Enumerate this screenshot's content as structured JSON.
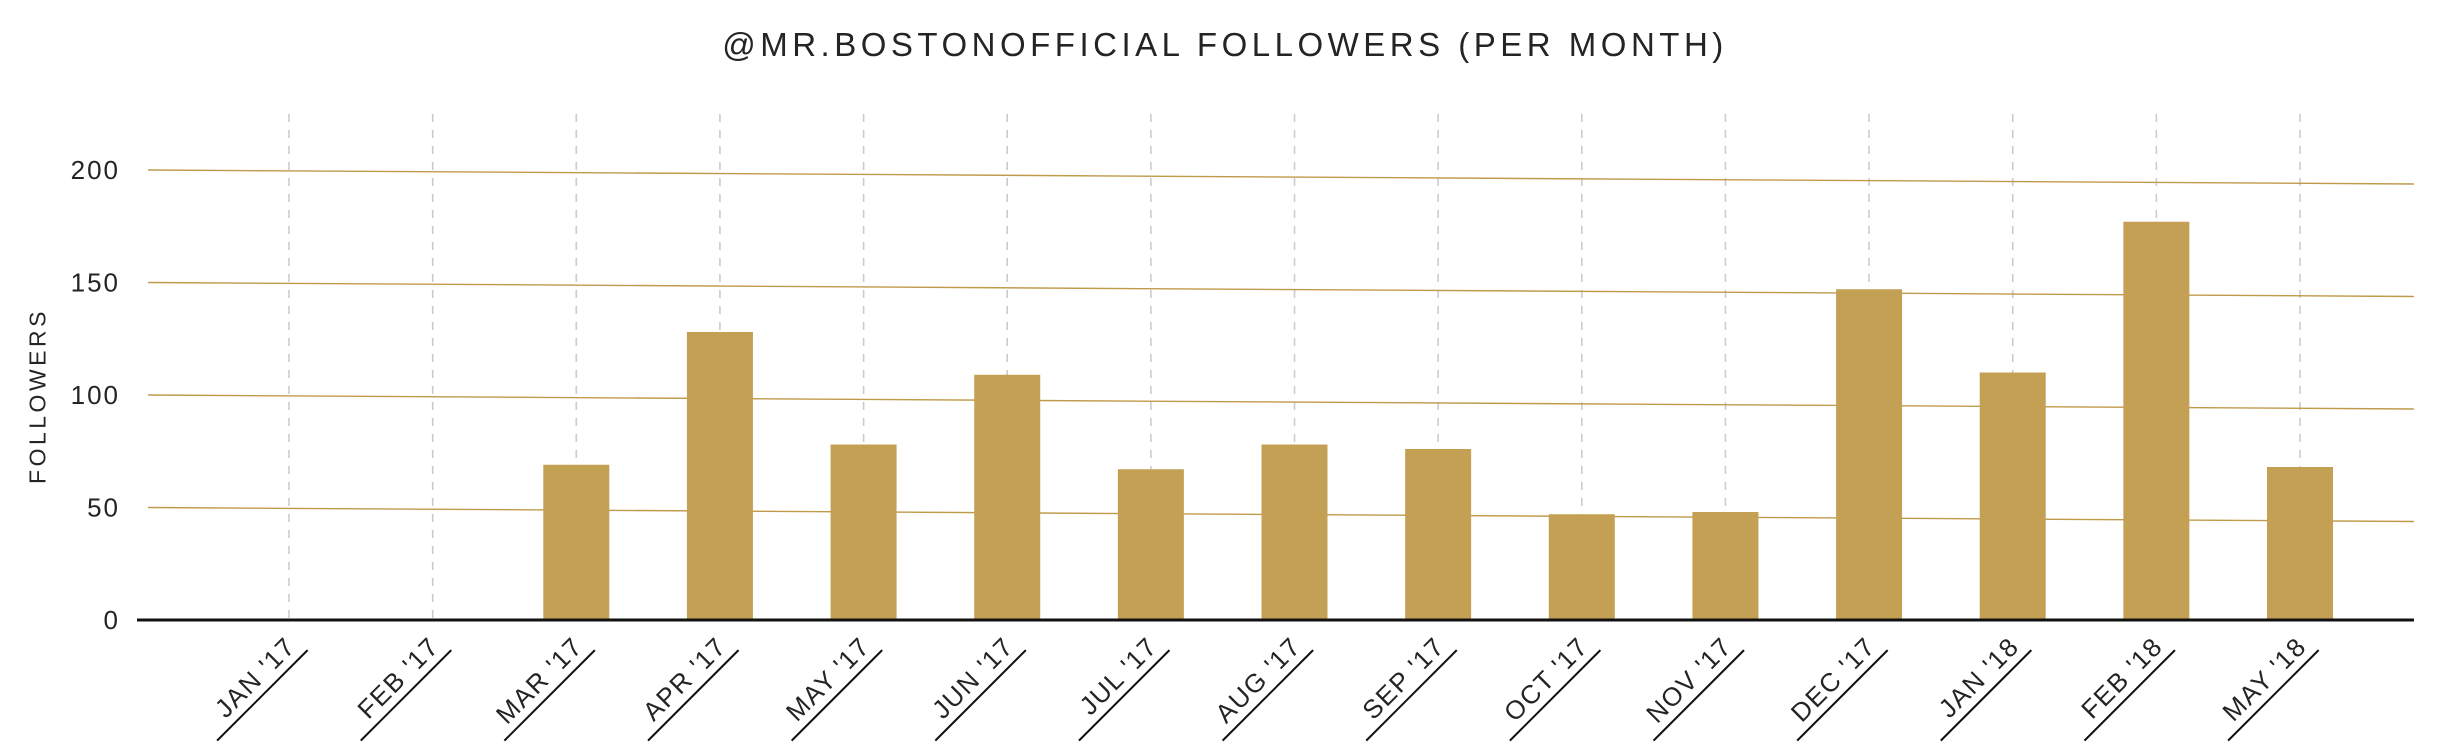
{
  "chart_data": {
    "type": "bar",
    "title": "@MR.BOSTONOFFICIAL FOLLOWERS (PER MONTH)",
    "ylabel": "FOLLOWERS",
    "xlabel": "",
    "categories": [
      "JAN '17",
      "FEB '17",
      "MAR '17",
      "APR '17",
      "MAY '17",
      "JUN '17",
      "JUL '17",
      "AUG '17",
      "SEP '17",
      "OCT '17",
      "NOV '17",
      "DEC '17",
      "JAN '18",
      "FEB '18",
      "MAY '18"
    ],
    "values": [
      0,
      0,
      69,
      128,
      78,
      109,
      67,
      78,
      76,
      47,
      48,
      147,
      110,
      177,
      68
    ],
    "yticks": [
      0,
      50,
      100,
      150,
      200
    ],
    "ylim": [
      0,
      225
    ],
    "grid": "horizontal solid gold lines, vertical dashed gray lines",
    "legend": "none",
    "colors": {
      "bar": "#C3A054",
      "gridline": "#BF9A4A",
      "dashed_gridline": "#CBCBCB",
      "axis_line": "#111111",
      "text": "#242424"
    }
  }
}
